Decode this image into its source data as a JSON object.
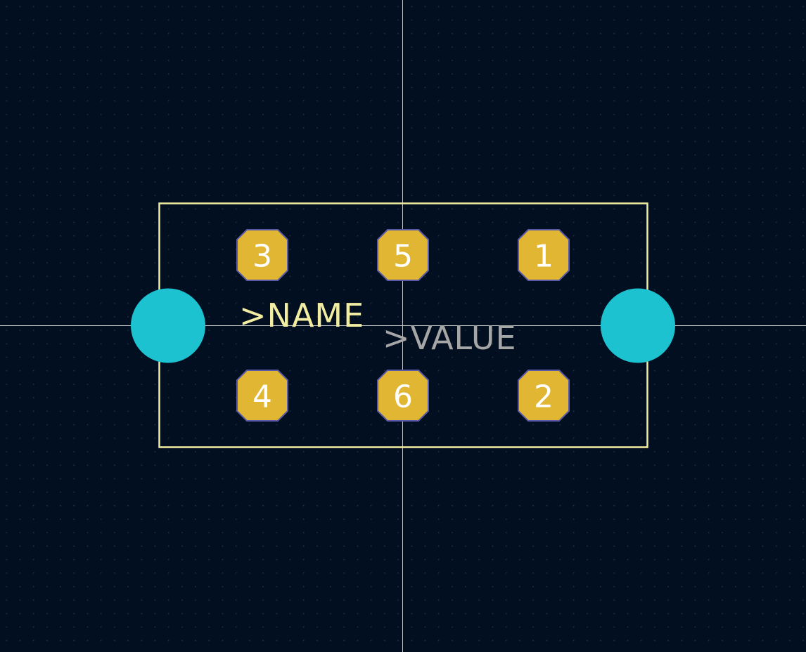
{
  "pads": [
    {
      "number": "3"
    },
    {
      "number": "5"
    },
    {
      "number": "1"
    },
    {
      "number": "4"
    },
    {
      "number": "6"
    },
    {
      "number": "2"
    }
  ],
  "labels": {
    "name": ">NAME",
    "value": ">VALUE"
  },
  "colors": {
    "background": "#020f20",
    "grid_dot": "#2a3a4e",
    "crosshair": "#c8c8c8",
    "silkscreen": "#f2eda1",
    "pad_fill": "#e1b632",
    "pad_outline": "#5a5aa8",
    "mounting_hole": "#1cc2d0",
    "value_text": "#a6a6a6",
    "pad_text": "#ffffff"
  }
}
